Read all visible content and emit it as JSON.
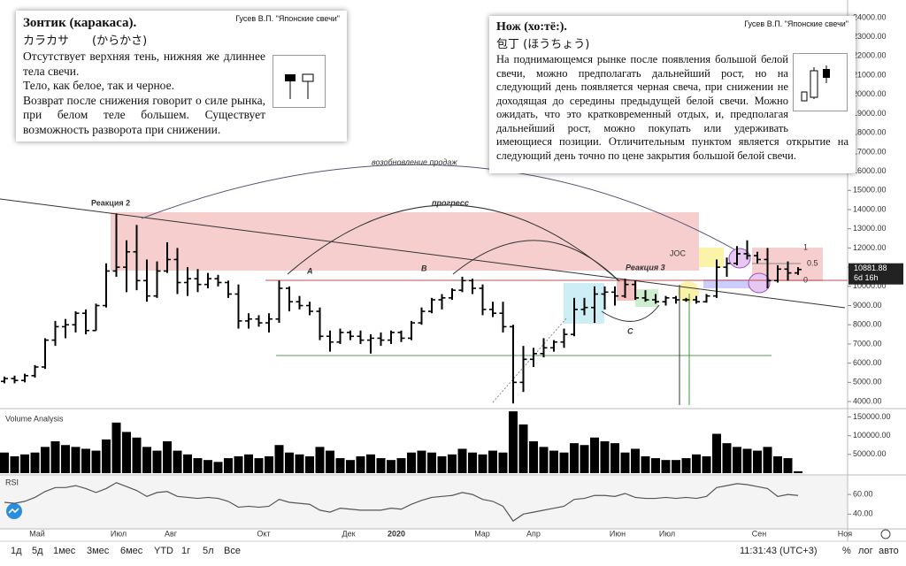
{
  "chart_data": [
    {
      "type": "ohlc",
      "color": "#000000",
      "open": [
        5050,
        5200,
        5100,
        5350,
        5800,
        7200,
        7900,
        8000,
        8600,
        7700,
        9000,
        10800,
        11000,
        11800,
        10300,
        9500,
        10800,
        11400,
        10200,
        10400,
        10100,
        10400,
        10200,
        9600,
        8200,
        8300,
        8100,
        8300,
        9900,
        9200,
        9000,
        8700,
        7400,
        7100,
        7600,
        7400,
        7200,
        7300,
        7200,
        7600,
        7300,
        8100,
        8700,
        9300,
        9400,
        9800,
        10300,
        9900,
        8800,
        8600,
        7900,
        5000,
        6200,
        6500,
        6800,
        7100,
        7500,
        8800,
        8900,
        9600,
        9700,
        9500,
        10100,
        9400,
        9300,
        9200,
        9400,
        9300,
        9300,
        9200,
        9500,
        11000,
        11200,
        11700,
        11600,
        11400,
        10300,
        10900,
        10700
      ],
      "high": [
        5300,
        5350,
        5450,
        5900,
        7300,
        8200,
        8300,
        8700,
        8800,
        9100,
        11200,
        13800,
        12400,
        13200,
        11400,
        11300,
        12300,
        12000,
        11000,
        10900,
        10700,
        10600,
        10300,
        10100,
        8600,
        8500,
        8600,
        10300,
        10000,
        9500,
        9200,
        8900,
        7700,
        7800,
        7700,
        7700,
        7500,
        7600,
        7700,
        7700,
        8200,
        8900,
        9400,
        9600,
        9900,
        10500,
        10400,
        10100,
        9200,
        9200,
        8000,
        6900,
        6800,
        7300,
        7200,
        7800,
        9400,
        9400,
        10000,
        10000,
        10000,
        10400,
        10300,
        9800,
        9600,
        9500,
        9500,
        9400,
        9500,
        9600,
        11400,
        11500,
        12100,
        12400,
        11800,
        12000,
        11100,
        11300,
        11000
      ],
      "low": [
        4950,
        4950,
        5000,
        5250,
        5700,
        6900,
        7300,
        7600,
        7500,
        7700,
        8900,
        10500,
        9700,
        9800,
        9200,
        9400,
        10700,
        9600,
        9500,
        9700,
        9900,
        10000,
        9400,
        7800,
        7800,
        7900,
        7600,
        8100,
        8700,
        8800,
        8500,
        7200,
        6600,
        7000,
        7200,
        7000,
        6500,
        6900,
        7000,
        7100,
        7200,
        8000,
        8600,
        8800,
        9300,
        9700,
        9600,
        8500,
        8400,
        7600,
        3900,
        4500,
        5800,
        6300,
        6600,
        6800,
        7400,
        8500,
        8100,
        8800,
        9000,
        9400,
        9300,
        9200,
        9100,
        9000,
        9100,
        9200,
        9100,
        9150,
        9400,
        10500,
        11100,
        11400,
        11200,
        9900,
        10200,
        10300,
        10600
      ],
      "close": [
        5200,
        5100,
        5350,
        5800,
        7200,
        7900,
        8000,
        8600,
        7700,
        9000,
        10800,
        11000,
        11800,
        10300,
        9500,
        10800,
        11400,
        10200,
        10400,
        10100,
        10400,
        10200,
        9600,
        8200,
        8300,
        8100,
        8300,
        9900,
        9200,
        9000,
        8700,
        7400,
        7100,
        7600,
        7400,
        7200,
        7300,
        7200,
        7600,
        7300,
        8100,
        8700,
        9300,
        9400,
        9800,
        10300,
        9900,
        8800,
        8600,
        7900,
        5000,
        6200,
        6500,
        6800,
        7100,
        7500,
        8800,
        8900,
        9600,
        9700,
        9500,
        10100,
        9400,
        9300,
        9200,
        9400,
        9300,
        9300,
        9200,
        9500,
        11000,
        11200,
        11700,
        11600,
        11400,
        10300,
        10900,
        10700,
        10880
      ],
      "ylim": [
        3680,
        24320
      ],
      "yticks": [
        {
          "value": 4000,
          "label": "4000.00"
        },
        {
          "value": 5000,
          "label": "5000.00"
        },
        {
          "value": 6000,
          "label": "6000.00"
        },
        {
          "value": 7000,
          "label": "7000.00"
        },
        {
          "value": 8000,
          "label": "8000.00"
        },
        {
          "value": 9000,
          "label": "9000.00"
        },
        {
          "value": 10000,
          "label": "10000.00"
        },
        {
          "value": 11000,
          "label": "11000.00"
        },
        {
          "value": 12000,
          "label": "12000.00"
        },
        {
          "value": 13000,
          "label": "13000.00"
        },
        {
          "value": 14000,
          "label": "14000.00"
        },
        {
          "value": 15000,
          "label": "15000.00"
        },
        {
          "value": 16000,
          "label": "16000.00"
        },
        {
          "value": 17000,
          "label": "17000.00"
        },
        {
          "value": 18000,
          "label": "18000.00"
        },
        {
          "value": 19000,
          "label": "19000.00"
        },
        {
          "value": 20000,
          "label": "20000.00"
        },
        {
          "value": 21000,
          "label": "21000.00"
        },
        {
          "value": 22000,
          "label": "22000.00"
        },
        {
          "value": 23000,
          "label": "23000.00"
        },
        {
          "value": 24000,
          "label": "24000.00"
        }
      ],
      "last_value": {
        "value": 10881.88,
        "label": "10881.88"
      },
      "countdown": "6d 16h"
    },
    {
      "type": "bar",
      "title": "Volume Analysis",
      "color": "#000000",
      "values": [
        55000,
        45000,
        50000,
        55000,
        70000,
        85000,
        75000,
        70000,
        65000,
        60000,
        90000,
        135000,
        110000,
        95000,
        70000,
        60000,
        85000,
        60000,
        50000,
        40000,
        35000,
        30000,
        40000,
        45000,
        50000,
        40000,
        45000,
        75000,
        55000,
        50000,
        45000,
        70000,
        60000,
        40000,
        35000,
        45000,
        50000,
        40000,
        35000,
        40000,
        55000,
        60000,
        55000,
        45000,
        50000,
        65000,
        55000,
        50000,
        60000,
        55000,
        165000,
        130000,
        85000,
        70000,
        60000,
        55000,
        80000,
        75000,
        95000,
        85000,
        80000,
        55000,
        65000,
        45000,
        40000,
        35000,
        35000,
        40000,
        50000,
        45000,
        105000,
        80000,
        70000,
        65000,
        60000,
        70000,
        45000,
        40000,
        5000
      ],
      "ylim": [
        0,
        170000
      ],
      "yticks": [
        {
          "value": 50000,
          "label": "50000.00"
        },
        {
          "value": 100000,
          "label": "100000.00"
        },
        {
          "value": 150000,
          "label": "150000.00"
        }
      ]
    },
    {
      "type": "line",
      "title": "RSI",
      "color": "#555555",
      "values": [
        52,
        51,
        53,
        57,
        63,
        67,
        67,
        69,
        66,
        62,
        66,
        72,
        68,
        64,
        58,
        62,
        63,
        58,
        57,
        56,
        57,
        56,
        53,
        47,
        48,
        47,
        48,
        55,
        52,
        51,
        50,
        44,
        42,
        46,
        45,
        44,
        44,
        44,
        46,
        45,
        50,
        54,
        57,
        58,
        59,
        62,
        60,
        55,
        53,
        48,
        33,
        40,
        42,
        44,
        46,
        48,
        55,
        56,
        59,
        59,
        58,
        61,
        57,
        56,
        56,
        57,
        56,
        57,
        56,
        58,
        67,
        69,
        71,
        70,
        68,
        66,
        58,
        60,
        59
      ],
      "ylim": [
        25,
        79
      ],
      "yticks": [
        {
          "value": 40,
          "label": "40.00"
        },
        {
          "value": 60,
          "label": "60.00"
        }
      ]
    }
  ],
  "time_axis": [
    "Май",
    "Июл",
    "Авг",
    "Окт",
    "Дек",
    "2020",
    "Мар",
    "Апр",
    "Июн",
    "Июл",
    "Сен",
    "Ноя"
  ],
  "annotations": {
    "sales": "возобновление продаж",
    "reaction2": "Реакция 2",
    "progress": "прогресс",
    "a": "A",
    "b": "B",
    "reaction3": "Реакция 3",
    "c": "C",
    "joc": "JOC",
    "fib_1": "1",
    "fib_half": "0.5",
    "fib_0": "0"
  },
  "note_left": {
    "title": "Зонтик (каракаса).",
    "source": "Гусев В.П. \"Японские свечи\"",
    "japanese": "カラカサ　　(からかさ)",
    "paragraphs": [
      "Отсутствует верхняя тень, нижняя же длиннее тела свечи.",
      "Тело, как белое, так и черное.",
      "Возврат после снижения говорит о силе рынка, при белом теле большем. Существует возможность разворота при снижении."
    ]
  },
  "note_right": {
    "title": "Нож (хо:тё:).",
    "source": "Гусев В.П. \"Японские свечи\"",
    "japanese": "包丁 (ほうちょう)",
    "text": "На поднимающемся рынке после появления большой белой свечи, можно предполагать дальнейший рост, но на следующий день появляется черная свеча, при снижении не доходящая до середины предыдущей белой свечи. Можно ожидать, что это кратковременный отдых, и, предполагая дальнейший рост, можно покупать или удерживать имеющиеся позиции. Отличительным пунктом является открытие на следующий день точно по цене закрытия большой белой свечи."
  },
  "toolbar": {
    "ranges": [
      "1д",
      "5д",
      "1мес",
      "3мес",
      "6мес",
      "YTD",
      "1г",
      "5л",
      "Все"
    ],
    "clock": "11:31:43 (UTC+3)",
    "options": [
      "%",
      "лог",
      "авто"
    ]
  }
}
